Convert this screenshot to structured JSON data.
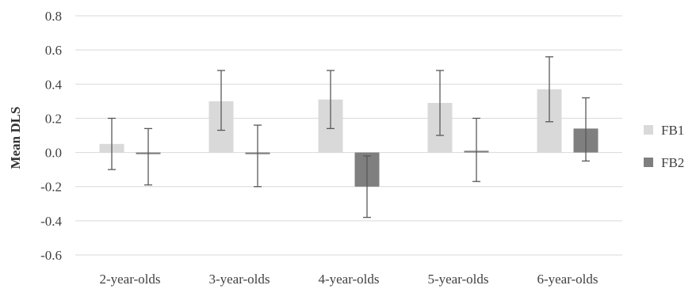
{
  "chart_data": {
    "type": "bar",
    "title": "",
    "xlabel": "",
    "ylabel": "Mean DLS",
    "ylim": [
      -0.6,
      0.8
    ],
    "yticks": [
      "0.8",
      "0.6",
      "0.4",
      "0.2",
      "0.0",
      "-0.2",
      "-0.4",
      "-0.6"
    ],
    "grid": true,
    "legend_position": "right",
    "categories": [
      "2-year-olds",
      "3-year-olds",
      "4-year-olds",
      "5-year-olds",
      "6-year-olds"
    ],
    "series": [
      {
        "name": "FB1",
        "color": "#d9d9d9",
        "values": [
          0.05,
          0.3,
          0.31,
          0.29,
          0.37
        ],
        "error_low": [
          -0.1,
          0.13,
          0.14,
          0.1,
          0.18
        ],
        "error_high": [
          0.2,
          0.48,
          0.48,
          0.48,
          0.56
        ]
      },
      {
        "name": "FB2",
        "color": "#7f7f7f",
        "values": [
          -0.01,
          -0.01,
          -0.2,
          0.01,
          0.14
        ],
        "error_low": [
          -0.19,
          -0.2,
          -0.38,
          -0.17,
          -0.05
        ],
        "error_high": [
          0.14,
          0.16,
          -0.02,
          0.2,
          0.32
        ]
      }
    ],
    "error_bar_color": "#595959"
  }
}
